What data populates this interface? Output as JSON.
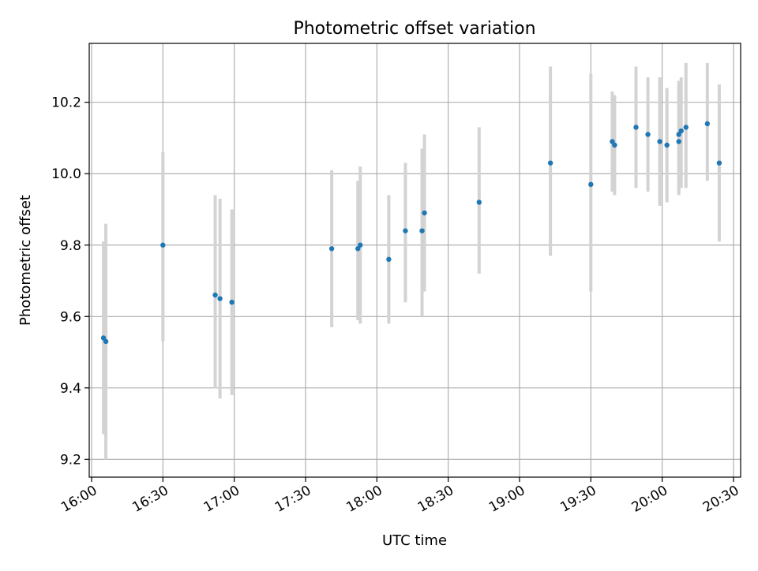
{
  "chart_data": {
    "type": "scatter",
    "title": "Photometric offset variation",
    "xlabel": "UTC time",
    "ylabel": "Photometric offset",
    "x_ticks": [
      "16:00",
      "16:30",
      "17:00",
      "17:30",
      "18:00",
      "18:30",
      "19:00",
      "19:30",
      "20:00",
      "20:30"
    ],
    "y_ticks": [
      "9.2",
      "9.4",
      "9.6",
      "9.8",
      "10.0",
      "10.2"
    ],
    "xlim": [
      "15:59",
      "20:33"
    ],
    "ylim": [
      9.15,
      10.365
    ],
    "grid": true,
    "colors": {
      "marker": "#1f77b4",
      "errorbar": "#d3d3d3",
      "grid": "#b0b0b0"
    },
    "series": [
      {
        "points": [
          {
            "t": "16:05",
            "y": 9.54,
            "lo": 9.27,
            "hi": 9.81
          },
          {
            "t": "16:06",
            "y": 9.53,
            "lo": 9.2,
            "hi": 9.86
          },
          {
            "t": "16:30",
            "y": 9.8,
            "lo": 9.53,
            "hi": 10.06
          },
          {
            "t": "16:52",
            "y": 9.66,
            "lo": 9.4,
            "hi": 9.94
          },
          {
            "t": "16:54",
            "y": 9.65,
            "lo": 9.37,
            "hi": 9.93
          },
          {
            "t": "16:59",
            "y": 9.64,
            "lo": 9.38,
            "hi": 9.9
          },
          {
            "t": "17:41",
            "y": 9.79,
            "lo": 9.57,
            "hi": 10.01
          },
          {
            "t": "17:52",
            "y": 9.79,
            "lo": 9.59,
            "hi": 9.98
          },
          {
            "t": "17:53",
            "y": 9.8,
            "lo": 9.58,
            "hi": 10.02
          },
          {
            "t": "18:05",
            "y": 9.76,
            "lo": 9.58,
            "hi": 9.94
          },
          {
            "t": "18:12",
            "y": 9.84,
            "lo": 9.64,
            "hi": 10.03
          },
          {
            "t": "18:19",
            "y": 9.84,
            "lo": 9.6,
            "hi": 10.07
          },
          {
            "t": "18:20",
            "y": 9.89,
            "lo": 9.67,
            "hi": 10.11
          },
          {
            "t": "18:43",
            "y": 9.92,
            "lo": 9.72,
            "hi": 10.13
          },
          {
            "t": "19:13",
            "y": 10.03,
            "lo": 9.77,
            "hi": 10.3
          },
          {
            "t": "19:30",
            "y": 9.97,
            "lo": 9.67,
            "hi": 10.28
          },
          {
            "t": "19:39",
            "y": 10.09,
            "lo": 9.95,
            "hi": 10.23
          },
          {
            "t": "19:40",
            "y": 10.08,
            "lo": 9.94,
            "hi": 10.22
          },
          {
            "t": "19:49",
            "y": 10.13,
            "lo": 9.96,
            "hi": 10.3
          },
          {
            "t": "19:54",
            "y": 10.11,
            "lo": 9.95,
            "hi": 10.27
          },
          {
            "t": "19:59",
            "y": 10.09,
            "lo": 9.91,
            "hi": 10.27
          },
          {
            "t": "20:02",
            "y": 10.08,
            "lo": 9.92,
            "hi": 10.24
          },
          {
            "t": "20:07",
            "y": 10.09,
            "lo": 9.94,
            "hi": 10.24
          },
          {
            "t": "20:07",
            "y": 10.11,
            "lo": 9.95,
            "hi": 10.26
          },
          {
            "t": "20:08",
            "y": 10.12,
            "lo": 9.96,
            "hi": 10.27
          },
          {
            "t": "20:10",
            "y": 10.13,
            "lo": 9.96,
            "hi": 10.31
          },
          {
            "t": "20:19",
            "y": 10.14,
            "lo": 9.98,
            "hi": 10.31
          },
          {
            "t": "20:24",
            "y": 10.03,
            "lo": 9.81,
            "hi": 10.25
          }
        ]
      }
    ]
  }
}
